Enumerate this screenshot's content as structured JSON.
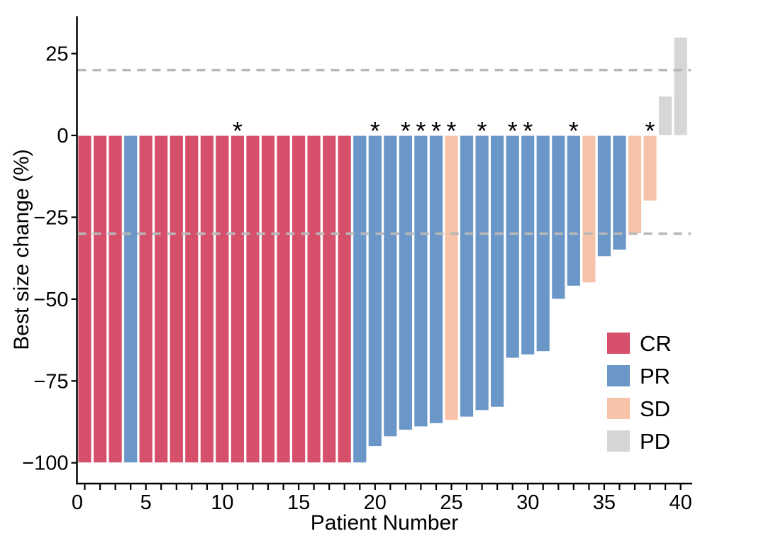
{
  "chart_data": {
    "type": "bar",
    "subtype": "waterfall",
    "title": "",
    "xlabel": "Patient Number",
    "ylabel": "Best size change (%)",
    "x_major_ticks": [
      0,
      5,
      10,
      15,
      20,
      25,
      30,
      35,
      40
    ],
    "x_minor_tick_step": 1,
    "xlim": [
      0,
      41
    ],
    "ylim": [
      -106,
      36
    ],
    "yticks": [
      25,
      0,
      -25,
      -50,
      -75,
      -100
    ],
    "grid": "off",
    "reference_lines": [
      {
        "y": 20,
        "style": "dashed",
        "color": "#b8b8b8"
      },
      {
        "y": -30,
        "style": "dashed",
        "color": "#b8b8b8"
      }
    ],
    "annotation_symbol": "*",
    "legend": {
      "position": "right-lower-inside",
      "entries": [
        {
          "label": "CR",
          "color": "#d6506b"
        },
        {
          "label": "PR",
          "color": "#6a97c8"
        },
        {
          "label": "SD",
          "color": "#f7c3a8"
        },
        {
          "label": "PD",
          "color": "#d6d6d6"
        }
      ]
    },
    "patients": [
      {
        "patient": 1,
        "value": -100,
        "response": "CR",
        "annotated": false
      },
      {
        "patient": 2,
        "value": -100,
        "response": "CR",
        "annotated": false
      },
      {
        "patient": 3,
        "value": -100,
        "response": "CR",
        "annotated": false
      },
      {
        "patient": 4,
        "value": -100,
        "response": "PR",
        "annotated": false
      },
      {
        "patient": 5,
        "value": -100,
        "response": "CR",
        "annotated": false
      },
      {
        "patient": 6,
        "value": -100,
        "response": "CR",
        "annotated": false
      },
      {
        "patient": 7,
        "value": -100,
        "response": "CR",
        "annotated": false
      },
      {
        "patient": 8,
        "value": -100,
        "response": "CR",
        "annotated": false
      },
      {
        "patient": 9,
        "value": -100,
        "response": "CR",
        "annotated": false
      },
      {
        "patient": 10,
        "value": -100,
        "response": "CR",
        "annotated": false
      },
      {
        "patient": 11,
        "value": -100,
        "response": "CR",
        "annotated": true
      },
      {
        "patient": 12,
        "value": -100,
        "response": "CR",
        "annotated": false
      },
      {
        "patient": 13,
        "value": -100,
        "response": "CR",
        "annotated": false
      },
      {
        "patient": 14,
        "value": -100,
        "response": "CR",
        "annotated": false
      },
      {
        "patient": 15,
        "value": -100,
        "response": "CR",
        "annotated": false
      },
      {
        "patient": 16,
        "value": -100,
        "response": "CR",
        "annotated": false
      },
      {
        "patient": 17,
        "value": -100,
        "response": "CR",
        "annotated": false
      },
      {
        "patient": 18,
        "value": -100,
        "response": "CR",
        "annotated": false
      },
      {
        "patient": 19,
        "value": -100,
        "response": "PR",
        "annotated": false
      },
      {
        "patient": 20,
        "value": -95,
        "response": "PR",
        "annotated": true
      },
      {
        "patient": 21,
        "value": -92,
        "response": "PR",
        "annotated": false
      },
      {
        "patient": 22,
        "value": -90,
        "response": "PR",
        "annotated": true
      },
      {
        "patient": 23,
        "value": -89,
        "response": "PR",
        "annotated": true
      },
      {
        "patient": 24,
        "value": -88,
        "response": "PR",
        "annotated": true
      },
      {
        "patient": 25,
        "value": -87,
        "response": "SD",
        "annotated": true
      },
      {
        "patient": 26,
        "value": -86,
        "response": "PR",
        "annotated": false
      },
      {
        "patient": 27,
        "value": -84,
        "response": "PR",
        "annotated": true
      },
      {
        "patient": 28,
        "value": -83,
        "response": "PR",
        "annotated": false
      },
      {
        "patient": 29,
        "value": -68,
        "response": "PR",
        "annotated": true
      },
      {
        "patient": 30,
        "value": -67,
        "response": "PR",
        "annotated": true
      },
      {
        "patient": 31,
        "value": -66,
        "response": "PR",
        "annotated": false
      },
      {
        "patient": 32,
        "value": -50,
        "response": "PR",
        "annotated": false
      },
      {
        "patient": 33,
        "value": -46,
        "response": "PR",
        "annotated": true
      },
      {
        "patient": 34,
        "value": -45,
        "response": "SD",
        "annotated": false
      },
      {
        "patient": 35,
        "value": -37,
        "response": "PR",
        "annotated": false
      },
      {
        "patient": 36,
        "value": -35,
        "response": "PR",
        "annotated": false
      },
      {
        "patient": 37,
        "value": -30,
        "response": "SD",
        "annotated": false
      },
      {
        "patient": 38,
        "value": -20,
        "response": "SD",
        "annotated": true
      },
      {
        "patient": 39,
        "value": 12,
        "response": "PD",
        "annotated": false
      },
      {
        "patient": 40,
        "value": 30,
        "response": "PD",
        "annotated": false
      }
    ]
  }
}
